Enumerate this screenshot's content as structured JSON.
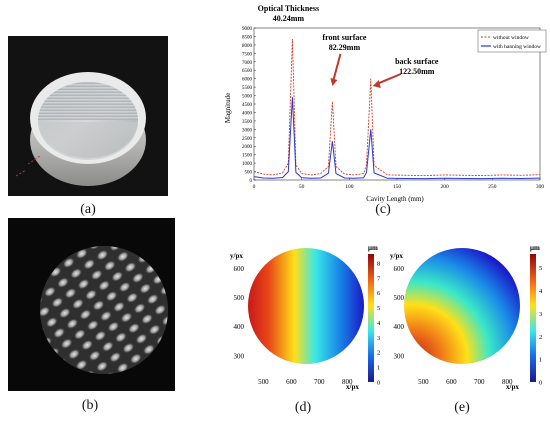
{
  "captions": {
    "a": "(a)",
    "b": "(b)",
    "c": "(c)",
    "d": "(d)",
    "e": "(e)"
  },
  "colors": {
    "without_window": "#d23a2a",
    "with_window": "#2a3ac8",
    "annotation": "#c0392b"
  },
  "chart_data": [
    {
      "type": "line",
      "title": "",
      "xlabel": "Cavity Length (mm)",
      "ylabel": "Magnitude",
      "xlim": [
        0,
        300
      ],
      "ylim": [
        0,
        9000
      ],
      "x_ticks": [
        "0",
        "50",
        "100",
        "150",
        "200",
        "250",
        "300"
      ],
      "y_ticks": [
        "0",
        "500",
        "1000",
        "1500",
        "2000",
        "2500",
        "3000",
        "3500",
        "4000",
        "4500",
        "5000",
        "5500",
        "6000",
        "6500",
        "7000",
        "7500",
        "8000",
        "8500",
        "9000"
      ],
      "legend_position": "top-right",
      "series": [
        {
          "name": "without window",
          "x": [
            0,
            10,
            20,
            30,
            36,
            40.24,
            44,
            50,
            60,
            70,
            78,
            82.29,
            86,
            95,
            105,
            115,
            118,
            122.5,
            126,
            140,
            160,
            180,
            200,
            220,
            240,
            260,
            280,
            300
          ],
          "y": [
            500,
            350,
            300,
            420,
            1000,
            8350,
            900,
            380,
            300,
            380,
            800,
            4650,
            800,
            350,
            300,
            380,
            900,
            6000,
            850,
            300,
            280,
            260,
            300,
            280,
            260,
            300,
            280,
            320
          ]
        },
        {
          "name": "with hanning window",
          "x": [
            0,
            10,
            20,
            30,
            36,
            40.24,
            44,
            50,
            60,
            70,
            78,
            82.29,
            86,
            95,
            105,
            115,
            118,
            122.5,
            126,
            140,
            160,
            180,
            200,
            220,
            240,
            260,
            280,
            300
          ],
          "y": [
            200,
            120,
            100,
            150,
            500,
            4900,
            450,
            130,
            100,
            120,
            400,
            2300,
            380,
            120,
            100,
            130,
            450,
            3000,
            420,
            100,
            90,
            80,
            100,
            90,
            80,
            100,
            90,
            110
          ]
        }
      ],
      "annotations": [
        {
          "lines": [
            "Optical Thickness",
            "40.24mm"
          ],
          "x": 40.24
        },
        {
          "lines": [
            "front surface",
            "82.29mm"
          ],
          "x": 82.29
        },
        {
          "lines": [
            "back surface",
            "122.50mm"
          ],
          "x": 122.5
        }
      ]
    },
    {
      "type": "heatmap",
      "xlabel": "x/px",
      "ylabel": "y/px",
      "colorbar_label": "μm",
      "x_ticks": [
        "500",
        "600",
        "700",
        "800"
      ],
      "y_ticks": [
        "300",
        "400",
        "500",
        "600"
      ],
      "colorbar_ticks": [
        "0",
        "1",
        "2",
        "3",
        "4",
        "5",
        "6",
        "7",
        "8"
      ],
      "colorbar_range": [
        0,
        8.6
      ],
      "gradient": "left-to-right",
      "gradient_stops_left_to_right": [
        "#c81818",
        "#e84818",
        "#ffe018",
        "#3ae8e8",
        "#1a8ae8",
        "#1a1ac8"
      ]
    },
    {
      "type": "heatmap",
      "xlabel": "x/px",
      "ylabel": "y/px",
      "colorbar_label": "μm",
      "x_ticks": [
        "500",
        "600",
        "700",
        "800"
      ],
      "y_ticks": [
        "300",
        "400",
        "500",
        "600"
      ],
      "colorbar_ticks": [
        "0",
        "1",
        "2",
        "3",
        "4",
        "5"
      ],
      "colorbar_range": [
        0,
        5.6
      ],
      "gradient": "radial-from-bottom-left",
      "gradient_stops_bottom_left_to_top_right": [
        "#c81818",
        "#f07818",
        "#ffe018",
        "#3ae8c8",
        "#1a8ae8",
        "#1a1ac8"
      ]
    }
  ]
}
